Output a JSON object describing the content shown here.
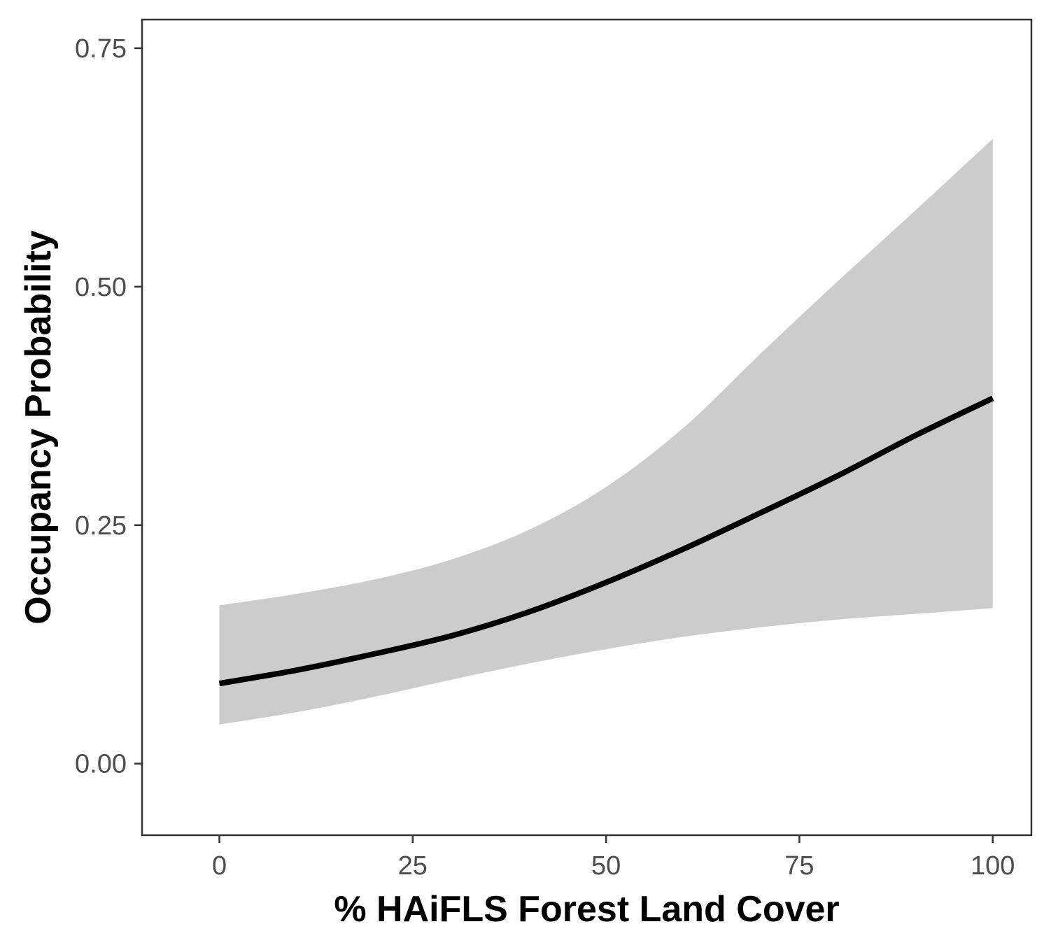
{
  "chart_data": {
    "type": "line",
    "title": "",
    "xlabel": "% HAiFLS Forest Land Cover",
    "ylabel": "Occupancy Probability",
    "xlim": [
      -10,
      105
    ],
    "ylim": [
      -0.075,
      0.78
    ],
    "x_ticks": [
      0,
      25,
      50,
      75,
      100
    ],
    "x_tick_labels": [
      "0",
      "25",
      "50",
      "75",
      "100"
    ],
    "y_ticks": [
      0,
      0.25,
      0.5,
      0.75
    ],
    "y_tick_labels": [
      "0.00",
      "0.25",
      "0.50",
      "0.75"
    ],
    "grid": false,
    "legend": "none",
    "colors": {
      "line": "#000000",
      "ribbon": "#cccccc",
      "panel_border": "#333333",
      "tick_label": "#4d4d4d"
    },
    "x": [
      0,
      10,
      20,
      30,
      40,
      50,
      60,
      70,
      80,
      90,
      100
    ],
    "series": [
      {
        "values": [
          0.084,
          0.098,
          0.115,
          0.134,
          0.159,
          0.19,
          0.225,
          0.263,
          0.302,
          0.344,
          0.383
        ],
        "lower": [
          0.041,
          0.054,
          0.07,
          0.088,
          0.105,
          0.12,
          0.133,
          0.143,
          0.151,
          0.157,
          0.163
        ],
        "upper": [
          0.166,
          0.178,
          0.193,
          0.214,
          0.245,
          0.29,
          0.352,
          0.43,
          0.506,
          0.58,
          0.655
        ]
      }
    ]
  }
}
